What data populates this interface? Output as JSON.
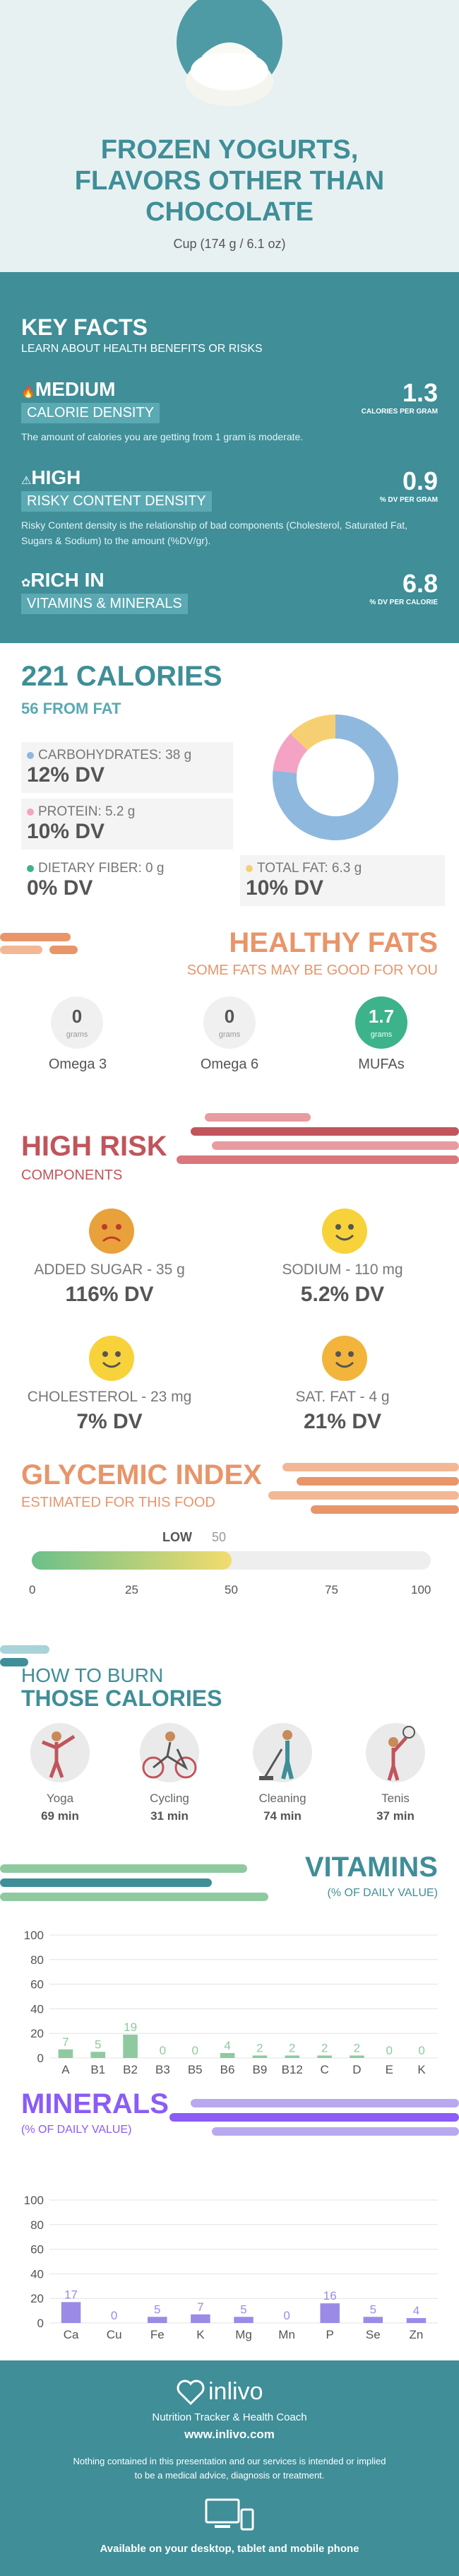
{
  "header": {
    "title_lines": [
      "FROZEN YOGURTS,",
      "FLAVORS OTHER THAN",
      "CHOCOLATE"
    ],
    "serving": "Cup (174 g / 6.1 oz)"
  },
  "key_facts": {
    "heading": "KEY FACTS",
    "subheading": "LEARN ABOUT HEALTH BENEFITS OR RISKS",
    "items": [
      {
        "level": "MEDIUM",
        "category": "CALORIE DENSITY",
        "value": "1.3",
        "unit": "CALORIES PER GRAM",
        "description": "The amount of calories you are getting from 1 gram is moderate.",
        "icon": "flame-icon"
      },
      {
        "level": "HIGH",
        "category": "RISKY CONTENT DENSITY",
        "value": "0.9",
        "unit": "% DV PER GRAM",
        "description": "Risky Content density is the relationship of bad components (Cholesterol, Saturated Fat, Sugars & Sodium) to the amount (%DV/gr).",
        "icon": "warning-icon"
      },
      {
        "level": "RICH IN",
        "category": "VITAMINS & MINERALS",
        "value": "6.8",
        "unit": "% DV PER CALORIE",
        "description": "",
        "icon": "leaf-icon"
      }
    ]
  },
  "calories": {
    "heading": "221 CALORIES",
    "from_fat": "56 FROM FAT",
    "nutrients": [
      {
        "label": "CARBOHYDRATES: 38 g",
        "dv": "12% DV",
        "color": "#8fb8df"
      },
      {
        "label": "PROTEIN: 5.2 g",
        "dv": "10% DV",
        "color": "#f4a3c4"
      },
      {
        "label": "DIETARY FIBER: 0 g",
        "dv": "0% DV",
        "color": "#3cb38a"
      },
      {
        "label": "TOTAL FAT: 6.3 g",
        "dv": "10% DV",
        "color": "#f7cf73"
      }
    ],
    "donut": [
      {
        "name": "Carbohydrates",
        "grams": 38,
        "color": "#8fb8df"
      },
      {
        "name": "Protein",
        "grams": 5.2,
        "color": "#f4a3c4"
      },
      {
        "name": "Total Fat",
        "grams": 6.3,
        "color": "#f7cf73"
      }
    ]
  },
  "healthy_fats": {
    "heading": "HEALTHY FATS",
    "subheading": "SOME FATS MAY BE GOOD FOR YOU",
    "items": [
      {
        "value": "0",
        "unit": "grams",
        "label": "Omega 3"
      },
      {
        "value": "0",
        "unit": "grams",
        "label": "Omega 6"
      },
      {
        "value": "1.7",
        "unit": "grams",
        "label": "MUFAs"
      }
    ]
  },
  "high_risk": {
    "heading": "HIGH RISK",
    "subheading": "COMPONENTS",
    "items": [
      {
        "label": "ADDED SUGAR - 35 g",
        "dv": "116% DV",
        "face": "sad",
        "color": "#e8a13b"
      },
      {
        "label": "SODIUM - 110 mg",
        "dv": "5.2% DV",
        "face": "happy",
        "color": "#f7d23b"
      },
      {
        "label": "CHOLESTEROL - 23 mg",
        "dv": "7% DV",
        "face": "happy",
        "color": "#f7d23b"
      },
      {
        "label": "SAT. FAT - 4 g",
        "dv": "21% DV",
        "face": "happy",
        "color": "#f2b43b"
      }
    ]
  },
  "glycemic": {
    "heading": "GLYCEMIC INDEX",
    "subheading": "ESTIMATED FOR THIS FOOD",
    "level": "LOW",
    "value": 50,
    "value_label": "50",
    "ticks": [
      "0",
      "25",
      "50",
      "75",
      "100"
    ]
  },
  "burn": {
    "heading_top": "HOW TO BURN",
    "heading_bottom": "THOSE CALORIES",
    "items": [
      {
        "label": "Yoga",
        "minutes": "69 min",
        "icon": "yoga-icon"
      },
      {
        "label": "Cycling",
        "minutes": "31 min",
        "icon": "cycling-icon"
      },
      {
        "label": "Cleaning",
        "minutes": "74 min",
        "icon": "cleaning-icon"
      },
      {
        "label": "Tenis",
        "minutes": "37 min",
        "icon": "tennis-icon"
      }
    ]
  },
  "chart_data": [
    {
      "type": "bar",
      "title": "VITAMINS",
      "subtitle": "(% OF DAILY VALUE)",
      "categories": [
        "A",
        "B1",
        "B2",
        "B3",
        "B5",
        "B6",
        "B9",
        "B12",
        "C",
        "D",
        "E",
        "K"
      ],
      "values": [
        7,
        5,
        19,
        0,
        0,
        4,
        2,
        2,
        2,
        2,
        0,
        0
      ],
      "ylim": [
        0,
        100
      ],
      "yticks": [
        0,
        20,
        40,
        60,
        80,
        100
      ],
      "color": "#8fc9a0"
    },
    {
      "type": "bar",
      "title": "MINERALS",
      "subtitle": "(% OF DAILY VALUE)",
      "categories": [
        "Ca",
        "Cu",
        "Fe",
        "K",
        "Mg",
        "Mn",
        "P",
        "Se",
        "Zn"
      ],
      "values": [
        17,
        0,
        5,
        7,
        5,
        0,
        16,
        5,
        4
      ],
      "ylim": [
        0,
        100
      ],
      "yticks": [
        0,
        20,
        40,
        60,
        80,
        100
      ],
      "color": "#9b8be6"
    }
  ],
  "footer": {
    "brand": "inlivo",
    "tagline": "Nutrition Tracker & Health Coach",
    "url": "www.inlivo.com",
    "disclaimer_1": "Nothing contained in this presentation and our services is intended or implied",
    "disclaimer_2": "to be a medical advice, diagnosis or treatment.",
    "devices": "Available on your desktop, tablet and mobile phone"
  }
}
